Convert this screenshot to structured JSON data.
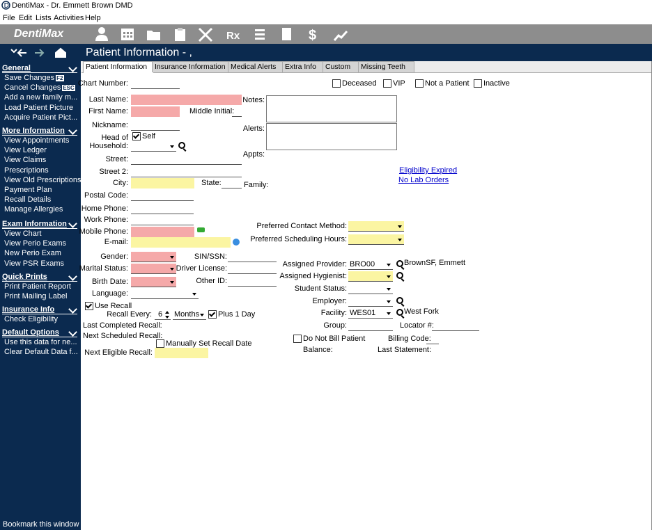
{
  "window": {
    "title": "DentiMax - Dr. Emmett Brown DMD"
  },
  "menu": [
    "File",
    "Edit",
    "Lists",
    "Activities",
    "Help"
  ],
  "toolbar": {
    "logo": "DentiMax",
    "glyphs": [
      "Rx",
      "$"
    ]
  },
  "header": {
    "title": "Patient Information - ,"
  },
  "sidebar": {
    "sections": [
      {
        "title": "General",
        "items": [
          {
            "label": "Save Changes",
            "key": "F2"
          },
          {
            "label": "Cancel Changes",
            "key": "ESC"
          },
          {
            "label": "Add a new family m..."
          },
          {
            "label": "Load Patient Picture"
          },
          {
            "label": "Acquire Patient Pict..."
          }
        ]
      },
      {
        "title": "More Information",
        "items": [
          {
            "label": "View Appointments"
          },
          {
            "label": "View Ledger"
          },
          {
            "label": "View Claims"
          },
          {
            "label": "Prescriptions"
          },
          {
            "label": "View Old Prescriptions"
          },
          {
            "label": "Payment Plan"
          },
          {
            "label": "Recall Details"
          },
          {
            "label": "Manage Allergies"
          }
        ]
      },
      {
        "title": "Exam Information",
        "items": [
          {
            "label": "View Chart"
          },
          {
            "label": "View Perio Exams"
          },
          {
            "label": "New Perio Exam"
          },
          {
            "label": "View PSR Exams"
          }
        ]
      },
      {
        "title": "Quick Prints",
        "items": [
          {
            "label": "Print Patient Report"
          },
          {
            "label": "Print Mailing Label"
          }
        ]
      },
      {
        "title": "Insurance Info",
        "items": [
          {
            "label": "Check Eligibility"
          }
        ]
      },
      {
        "title": "Default Options",
        "items": [
          {
            "label": "Use this data for ne..."
          },
          {
            "label": "Clear Default Data f..."
          }
        ]
      }
    ],
    "footer": "Bookmark this window"
  },
  "tabs": [
    "Patient Information",
    "Insurance Information",
    "Medical Alerts",
    "Extra Info",
    "Custom",
    "Missing Teeth"
  ],
  "form": {
    "labels": {
      "chart_number": "Chart Number:",
      "last_name": "Last Name:",
      "first_name": "First Name:",
      "middle_initial": "Middle Initial:",
      "nickname": "Nickname:",
      "head_of": "Head of",
      "household": "Household:",
      "street": "Street:",
      "street2": "Street 2:",
      "city": "City:",
      "state": "State:",
      "family": "Family:",
      "postal_code": "Postal Code:",
      "home_phone": "Home Phone:",
      "work_phone": "Work Phone:",
      "mobile_phone": "Mobile Phone:",
      "email": "E-mail:",
      "gender": "Gender:",
      "sin_ssn": "SIN/SSN:",
      "marital_status": "Marital Status:",
      "driver_license": "Driver License:",
      "birth_date": "Birth Date:",
      "other_id": "Other ID:",
      "language": "Language:",
      "recall_every": "Recall Every:",
      "last_completed_recall": "Last Completed Recall:",
      "next_scheduled_recall": "Next Scheduled Recall:",
      "next_eligible_recall": "Next Eligible Recall:",
      "notes": "Notes:",
      "alerts": "Alerts:",
      "appts": "Appts:",
      "preferred_contact": "Preferred Contact Method:",
      "preferred_scheduling": "Preferred Scheduling Hours:",
      "assigned_provider": "Assigned Provider:",
      "assigned_hygienist": "Assigned Hygienist:",
      "student_status": "Student Status:",
      "employer": "Employer:",
      "facility": "Facility:",
      "group": "Group:",
      "locator": "Locator #:",
      "billing_code": "Billing Code:",
      "balance": "Balance:",
      "last_statement": "Last Statement:"
    },
    "values": {
      "recall_every": "6",
      "recall_unit": "Months",
      "provider": "BRO00",
      "provider_name": "BrownSF, Emmett",
      "facility": "WES01",
      "facility_name": "West Fork"
    },
    "checkboxes": {
      "deceased": "Deceased",
      "vip": "VIP",
      "not_patient": "Not a Patient",
      "inactive": "Inactive",
      "self": "Self",
      "use_recall": "Use Recall",
      "plus_1_day": "Plus 1 Day",
      "manually_set": "Manually Set Recall Date",
      "do_not_bill": "Do Not Bill Patient"
    },
    "links": {
      "eligibility": "Eligibility Expired",
      "lab_orders": "No Lab Orders"
    }
  }
}
